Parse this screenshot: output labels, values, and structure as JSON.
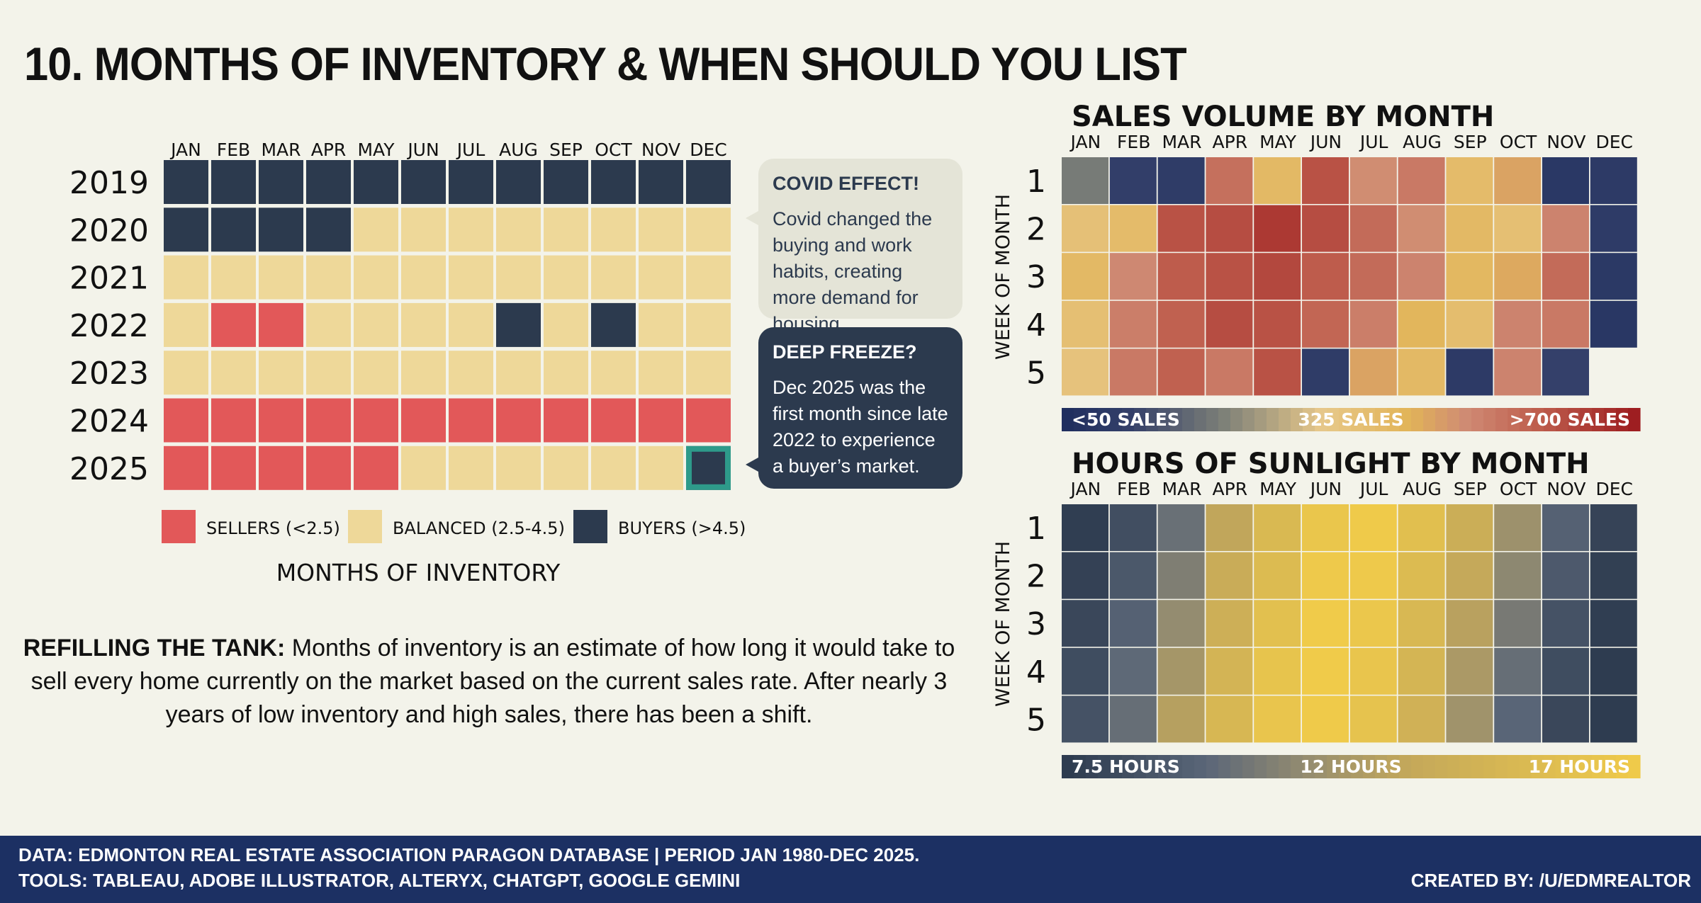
{
  "title": "10. MONTHS OF INVENTORY & WHEN SHOULD YOU LIST",
  "colors": {
    "background": "#f3f3ea",
    "sellers": "#e25859",
    "balanced": "#eed899",
    "buyers": "#2c3a4e",
    "highlight": "#2e9a8a",
    "footer": "#1c3063"
  },
  "chart_data": [
    {
      "type": "heatmap",
      "title": "MONTHS OF INVENTORY",
      "xlabel": "MONTHS OF INVENTORY",
      "categories": [
        "JAN",
        "FEB",
        "MAR",
        "APR",
        "MAY",
        "JUN",
        "JUL",
        "AUG",
        "SEP",
        "OCT",
        "NOV",
        "DEC"
      ],
      "rows": [
        "2019",
        "2020",
        "2021",
        "2022",
        "2023",
        "2024",
        "2025"
      ],
      "values": [
        [
          "B",
          "B",
          "B",
          "B",
          "B",
          "B",
          "B",
          "B",
          "B",
          "B",
          "B",
          "B"
        ],
        [
          "B",
          "B",
          "B",
          "B",
          "M",
          "M",
          "M",
          "M",
          "M",
          "M",
          "M",
          "M"
        ],
        [
          "M",
          "M",
          "M",
          "M",
          "M",
          "M",
          "M",
          "M",
          "M",
          "M",
          "M",
          "M"
        ],
        [
          "M",
          "S",
          "S",
          "M",
          "M",
          "M",
          "M",
          "B",
          "M",
          "B",
          "M",
          "M"
        ],
        [
          "M",
          "M",
          "M",
          "M",
          "M",
          "M",
          "M",
          "M",
          "M",
          "M",
          "M",
          "M"
        ],
        [
          "S",
          "S",
          "S",
          "S",
          "S",
          "S",
          "S",
          "S",
          "S",
          "S",
          "S",
          "S"
        ],
        [
          "S",
          "S",
          "S",
          "S",
          "S",
          "M",
          "M",
          "M",
          "M",
          "M",
          "M",
          "B"
        ]
      ],
      "highlight": {
        "row": "2025",
        "column": "DEC"
      },
      "legend": [
        {
          "key": "S",
          "label": "SELLERS (<2.5)"
        },
        {
          "key": "M",
          "label": "BALANCED (2.5-4.5)"
        },
        {
          "key": "B",
          "label": "BUYERS (>4.5)"
        }
      ]
    },
    {
      "type": "heatmap",
      "title": "SALES VOLUME BY MONTH",
      "ylabel": "WEEK OF MONTH",
      "categories": [
        "JAN",
        "FEB",
        "MAR",
        "APR",
        "MAY",
        "JUN",
        "JUL",
        "AUG",
        "SEP",
        "OCT",
        "NOV",
        "DEC"
      ],
      "rows": [
        "1",
        "2",
        "3",
        "4",
        "5"
      ],
      "values": [
        [
          200,
          80,
          70,
          580,
          420,
          640,
          520,
          560,
          410,
          480,
          50,
          60
        ],
        [
          380,
          410,
          640,
          650,
          690,
          650,
          590,
          520,
          420,
          390,
          540,
          65
        ],
        [
          420,
          530,
          620,
          640,
          660,
          620,
          590,
          540,
          430,
          470,
          590,
          55
        ],
        [
          390,
          550,
          610,
          650,
          640,
          600,
          550,
          440,
          400,
          540,
          560,
          45
        ],
        [
          370,
          560,
          610,
          560,
          640,
          70,
          480,
          420,
          60,
          540,
          90,
          null
        ]
      ],
      "range": [
        0,
        750
      ],
      "scale_labels": [
        "<50 SALES",
        "325 SALES",
        ">700 SALES"
      ]
    },
    {
      "type": "heatmap",
      "title": "HOURS OF SUNLIGHT BY MONTH",
      "ylabel": "WEEK OF MONTH",
      "categories": [
        "JAN",
        "FEB",
        "MAR",
        "APR",
        "MAY",
        "JUN",
        "JUL",
        "AUG",
        "SEP",
        "OCT",
        "NOV",
        "DEC"
      ],
      "rows": [
        "1",
        "2",
        "3",
        "4",
        "5"
      ],
      "values": [
        [
          7.7,
          8.6,
          10.3,
          13.1,
          15.0,
          16.5,
          16.9,
          15.7,
          13.8,
          11.8,
          9.6,
          8.0
        ],
        [
          7.9,
          9.1,
          10.9,
          13.6,
          15.3,
          16.8,
          16.8,
          15.3,
          13.3,
          11.3,
          9.2,
          7.8
        ],
        [
          8.2,
          9.6,
          11.5,
          14.0,
          15.8,
          17.0,
          16.6,
          14.9,
          12.8,
          10.7,
          8.8,
          7.7
        ],
        [
          8.5,
          10.0,
          12.1,
          14.5,
          16.2,
          17.0,
          16.4,
          14.6,
          12.3,
          10.2,
          8.5,
          7.6
        ],
        [
          8.8,
          10.2,
          12.7,
          14.8,
          16.4,
          16.9,
          16.1,
          14.2,
          11.9,
          9.8,
          8.2,
          7.6
        ]
      ],
      "range": [
        7.5,
        17
      ],
      "scale_labels": [
        "7.5 HOURS",
        "12 HOURS",
        "17 HOURS"
      ]
    }
  ],
  "callouts": {
    "covid": {
      "heading": "COVID EFFECT!",
      "text": "Covid changed the buying and work habits, creating more demand for housing."
    },
    "freeze": {
      "heading": "DEEP FREEZE?",
      "text": "Dec 2025 was the first month since late 2022 to experience a buyer’s market."
    }
  },
  "explanation": {
    "lead": "REFILLING THE TANK:",
    "text": "Months of inventory is an estimate of how long it would take to sell every home currently on the market based on the current sales rate. After nearly 3 years of low inventory and high sales, there has been a shift."
  },
  "footer": {
    "line1": "DATA: EDMONTON REAL ESTATE ASSOCIATION PARAGON DATABASE | PERIOD JAN 1980-DEC 2025.",
    "line2": "TOOLS: TABLEAU, ADOBE ILLUSTRATOR, ALTERYX, CHATGPT, GOOGLE GEMINI",
    "credit": "CREATED BY: /U/EDMREALTOR"
  }
}
